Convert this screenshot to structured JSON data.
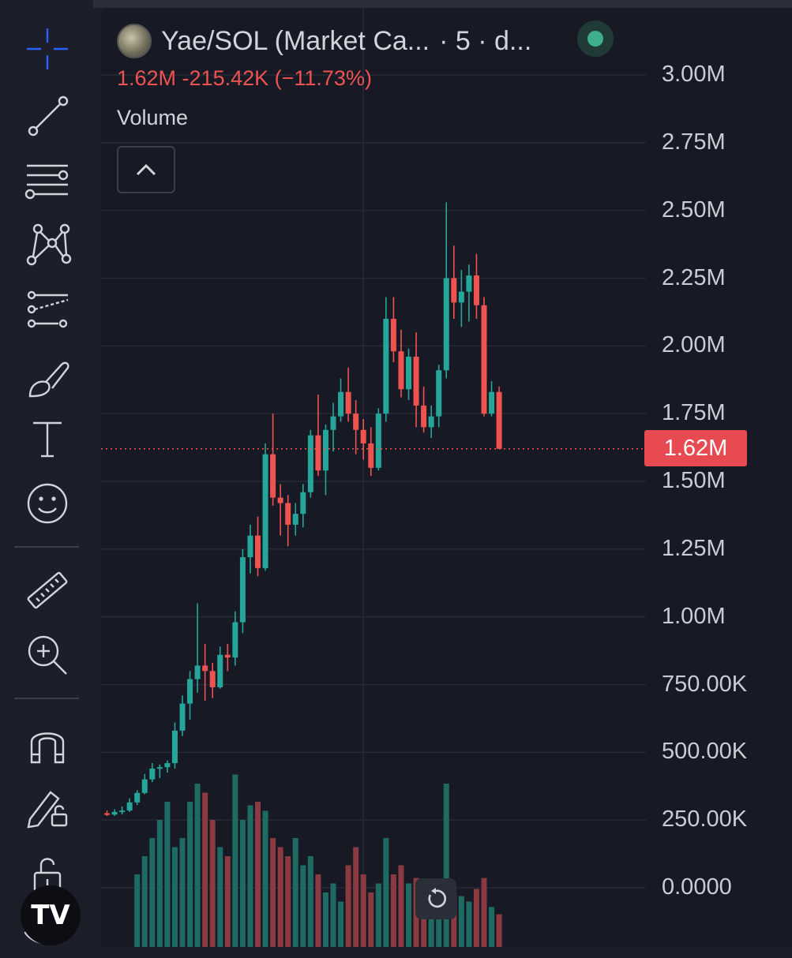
{
  "header": {
    "title": "Yae/SOL (Market Ca...",
    "interval": "· 5 · d...",
    "change_line": "1.62M  -215.42K (−11.73%)",
    "volume_label": "Volume"
  },
  "last_price_tag": "1.62M",
  "toolbar_icons": [
    "crosshair-icon",
    "trend-line-icon",
    "fib-retracement-icon",
    "pattern-icon",
    "forecast-icon",
    "brush-icon",
    "text-icon",
    "emoji-icon",
    "ruler-icon",
    "zoom-in-icon",
    "magnet-icon",
    "lock-drawing-icon",
    "unlock-icon",
    "eye-icon"
  ],
  "colors": {
    "up": "#26a69a",
    "down": "#ef5350",
    "bg": "#171a25",
    "grid": "#262a36"
  },
  "chart_data": {
    "type": "candlestick",
    "y_axis": {
      "min": 0,
      "max": 3000000,
      "unit": "market cap",
      "ticks": [
        "3.00M",
        "2.75M",
        "2.50M",
        "2.25M",
        "2.00M",
        "1.75M",
        "1.50M",
        "1.25M",
        "1.00M",
        "750.00K",
        "500.00K",
        "250.00K",
        "0.0000"
      ]
    },
    "last_value": 1620000,
    "candles": [
      {
        "o": 275,
        "h": 285,
        "l": 265,
        "c": 270
      },
      {
        "o": 270,
        "h": 290,
        "l": 265,
        "c": 280
      },
      {
        "o": 280,
        "h": 300,
        "l": 270,
        "c": 285
      },
      {
        "o": 285,
        "h": 330,
        "l": 280,
        "c": 315
      },
      {
        "o": 315,
        "h": 360,
        "l": 305,
        "c": 350
      },
      {
        "o": 350,
        "h": 420,
        "l": 345,
        "c": 400
      },
      {
        "o": 400,
        "h": 460,
        "l": 390,
        "c": 440
      },
      {
        "o": 440,
        "h": 455,
        "l": 405,
        "c": 445
      },
      {
        "o": 445,
        "h": 470,
        "l": 425,
        "c": 460
      },
      {
        "o": 460,
        "h": 610,
        "l": 440,
        "c": 580
      },
      {
        "o": 580,
        "h": 710,
        "l": 560,
        "c": 680
      },
      {
        "o": 680,
        "h": 800,
        "l": 620,
        "c": 770
      },
      {
        "o": 770,
        "h": 1050,
        "l": 720,
        "c": 820
      },
      {
        "o": 820,
        "h": 900,
        "l": 690,
        "c": 800
      },
      {
        "o": 800,
        "h": 830,
        "l": 700,
        "c": 740
      },
      {
        "o": 740,
        "h": 890,
        "l": 735,
        "c": 860
      },
      {
        "o": 860,
        "h": 900,
        "l": 800,
        "c": 850
      },
      {
        "o": 850,
        "h": 1020,
        "l": 820,
        "c": 980
      },
      {
        "o": 980,
        "h": 1250,
        "l": 940,
        "c": 1220
      },
      {
        "o": 1220,
        "h": 1340,
        "l": 1160,
        "c": 1300
      },
      {
        "o": 1300,
        "h": 1370,
        "l": 1150,
        "c": 1180
      },
      {
        "o": 1180,
        "h": 1640,
        "l": 1170,
        "c": 1600
      },
      {
        "o": 1600,
        "h": 1750,
        "l": 1410,
        "c": 1440
      },
      {
        "o": 1440,
        "h": 1490,
        "l": 1300,
        "c": 1420
      },
      {
        "o": 1420,
        "h": 1450,
        "l": 1260,
        "c": 1340
      },
      {
        "o": 1340,
        "h": 1420,
        "l": 1300,
        "c": 1380
      },
      {
        "o": 1380,
        "h": 1490,
        "l": 1330,
        "c": 1460
      },
      {
        "o": 1460,
        "h": 1690,
        "l": 1440,
        "c": 1670
      },
      {
        "o": 1670,
        "h": 1820,
        "l": 1520,
        "c": 1540
      },
      {
        "o": 1540,
        "h": 1710,
        "l": 1450,
        "c": 1690
      },
      {
        "o": 1690,
        "h": 1790,
        "l": 1610,
        "c": 1740
      },
      {
        "o": 1740,
        "h": 1880,
        "l": 1720,
        "c": 1830
      },
      {
        "o": 1830,
        "h": 1920,
        "l": 1720,
        "c": 1750
      },
      {
        "o": 1750,
        "h": 1800,
        "l": 1600,
        "c": 1690
      },
      {
        "o": 1690,
        "h": 1730,
        "l": 1580,
        "c": 1640
      },
      {
        "o": 1640,
        "h": 1700,
        "l": 1520,
        "c": 1550
      },
      {
        "o": 1550,
        "h": 1770,
        "l": 1540,
        "c": 1750
      },
      {
        "o": 1750,
        "h": 2180,
        "l": 1720,
        "c": 2100
      },
      {
        "o": 2100,
        "h": 2180,
        "l": 1940,
        "c": 1980
      },
      {
        "o": 1980,
        "h": 2060,
        "l": 1810,
        "c": 1840
      },
      {
        "o": 1840,
        "h": 1990,
        "l": 1800,
        "c": 1960
      },
      {
        "o": 1960,
        "h": 2050,
        "l": 1700,
        "c": 1780
      },
      {
        "o": 1780,
        "h": 1850,
        "l": 1680,
        "c": 1700
      },
      {
        "o": 1700,
        "h": 1780,
        "l": 1660,
        "c": 1740
      },
      {
        "o": 1740,
        "h": 1930,
        "l": 1700,
        "c": 1910
      },
      {
        "o": 1910,
        "h": 2530,
        "l": 1880,
        "c": 2250
      },
      {
        "o": 2250,
        "h": 2370,
        "l": 2100,
        "c": 2160
      },
      {
        "o": 2160,
        "h": 2280,
        "l": 2070,
        "c": 2200
      },
      {
        "o": 2200,
        "h": 2300,
        "l": 2090,
        "c": 2260
      },
      {
        "o": 2260,
        "h": 2340,
        "l": 2100,
        "c": 2150
      },
      {
        "o": 2150,
        "h": 2180,
        "l": 1740,
        "c": 1750
      },
      {
        "o": 1750,
        "h": 1870,
        "l": 1740,
        "c": 1830
      },
      {
        "o": 1830,
        "h": 1850,
        "l": 1620,
        "c": 1620
      }
    ],
    "volume": [
      0,
      0,
      0,
      0,
      0.4,
      0.5,
      0.6,
      0.7,
      0.8,
      0.55,
      0.6,
      0.8,
      0.9,
      0.85,
      0.7,
      0.55,
      0.5,
      0.95,
      0.7,
      0.78,
      0.8,
      0.75,
      0.6,
      0.55,
      0.5,
      0.6,
      0.45,
      0.5,
      0.4,
      0.3,
      0.35,
      0.25,
      0.45,
      0.55,
      0.4,
      0.3,
      0.35,
      0.6,
      0.4,
      0.45,
      0.35,
      0.38,
      0.32,
      0.25,
      0.3,
      0.9,
      0.3,
      0.28,
      0.25,
      0.32,
      0.38,
      0.22,
      0.18
    ],
    "volume_note": "relative volume heights"
  }
}
